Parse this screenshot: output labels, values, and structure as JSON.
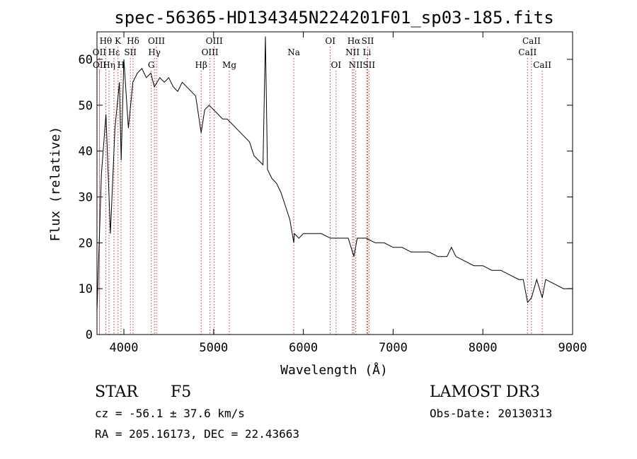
{
  "chart_data": {
    "type": "line",
    "title": "spec-56365-HD134345N224201F01_sp03-185.fits",
    "xlabel": "Wavelength (Å)",
    "ylabel": "Flux (relative)",
    "xlim": [
      3700,
      9000
    ],
    "ylim": [
      0,
      66
    ],
    "x_ticks": [
      4000,
      5000,
      6000,
      7000,
      8000,
      9000
    ],
    "y_ticks": [
      0,
      10,
      20,
      30,
      40,
      50,
      60
    ],
    "series": [
      {
        "name": "spectrum",
        "x": [
          3700,
          3750,
          3800,
          3850,
          3900,
          3950,
          3970,
          4000,
          4050,
          4100,
          4150,
          4200,
          4250,
          4300,
          4340,
          4400,
          4450,
          4500,
          4550,
          4600,
          4650,
          4700,
          4750,
          4800,
          4861,
          4900,
          4950,
          5000,
          5050,
          5100,
          5150,
          5200,
          5250,
          5300,
          5350,
          5400,
          5450,
          5500,
          5550,
          5577,
          5600,
          5650,
          5700,
          5750,
          5800,
          5850,
          5893,
          5900,
          5950,
          6000,
          6100,
          6200,
          6300,
          6400,
          6500,
          6563,
          6600,
          6700,
          6800,
          6900,
          7000,
          7100,
          7200,
          7300,
          7400,
          7500,
          7600,
          7650,
          7700,
          7800,
          7900,
          8000,
          8100,
          8200,
          8300,
          8400,
          8450,
          8498,
          8542,
          8600,
          8662,
          8700,
          8800,
          8900,
          9000
        ],
        "y": [
          5,
          35,
          48,
          22,
          45,
          55,
          38,
          60,
          45,
          55,
          57,
          58,
          56,
          57,
          54,
          56,
          55,
          56,
          54,
          53,
          55,
          54,
          53,
          52,
          44,
          49,
          50,
          49,
          48,
          47,
          47,
          46,
          45,
          44,
          43,
          42,
          39,
          38,
          37,
          65,
          36,
          34,
          33,
          31,
          28,
          25,
          20,
          22,
          21,
          22,
          22,
          22,
          21,
          21,
          21,
          17,
          21,
          21,
          20,
          20,
          19,
          19,
          18,
          18,
          18,
          17,
          17,
          19,
          17,
          16,
          15,
          15,
          14,
          14,
          13,
          12,
          12,
          7,
          8,
          12,
          8,
          12,
          11,
          10,
          10
        ]
      }
    ],
    "line_marks": [
      {
        "label": "Hθ",
        "x": 3798,
        "row": 1
      },
      {
        "label": "OII",
        "x": 3727,
        "row": 2
      },
      {
        "label": "OII",
        "x": 3729,
        "row": 3
      },
      {
        "label": "Hη",
        "x": 3835,
        "row": 3
      },
      {
        "label": "Hε",
        "x": 3889,
        "row": 2
      },
      {
        "label": "K",
        "x": 3934,
        "row": 1
      },
      {
        "label": "H",
        "x": 3968,
        "row": 3
      },
      {
        "label": "Hδ",
        "x": 4102,
        "row": 1
      },
      {
        "label": "SII",
        "x": 4072,
        "row": 2
      },
      {
        "label": "OIII",
        "x": 4363,
        "row": 1
      },
      {
        "label": "Hγ",
        "x": 4340,
        "row": 2
      },
      {
        "label": "G",
        "x": 4305,
        "row": 3
      },
      {
        "label": "OIII",
        "x": 5007,
        "row": 1
      },
      {
        "label": "OIII",
        "x": 4959,
        "row": 2
      },
      {
        "label": "Hβ",
        "x": 4861,
        "row": 3
      },
      {
        "label": "Mg",
        "x": 5175,
        "row": 3
      },
      {
        "label": "Na",
        "x": 5893,
        "row": 2
      },
      {
        "label": "OI",
        "x": 6300,
        "row": 1
      },
      {
        "label": "OI",
        "x": 6364,
        "row": 3
      },
      {
        "label": "Hα",
        "x": 6563,
        "row": 1
      },
      {
        "label": "SII",
        "x": 6717,
        "row": 1
      },
      {
        "label": "NII",
        "x": 6548,
        "row": 2
      },
      {
        "label": "Li",
        "x": 6708,
        "row": 2
      },
      {
        "label": "NII",
        "x": 6584,
        "row": 3
      },
      {
        "label": "SII",
        "x": 6731,
        "row": 3
      },
      {
        "label": "CaII",
        "x": 8542,
        "row": 1
      },
      {
        "label": "CaII",
        "x": 8498,
        "row": 2
      },
      {
        "label": "CaII",
        "x": 8662,
        "row": 3
      }
    ]
  },
  "info": {
    "class": "STAR",
    "subclass": "F5",
    "survey": "LAMOST DR3",
    "cz": "cz = -56.1 ± 37.6 km/s",
    "obs_date": "Obs-Date: 20130313",
    "coords": "RA = 205.16173, DEC =  22.43663"
  }
}
